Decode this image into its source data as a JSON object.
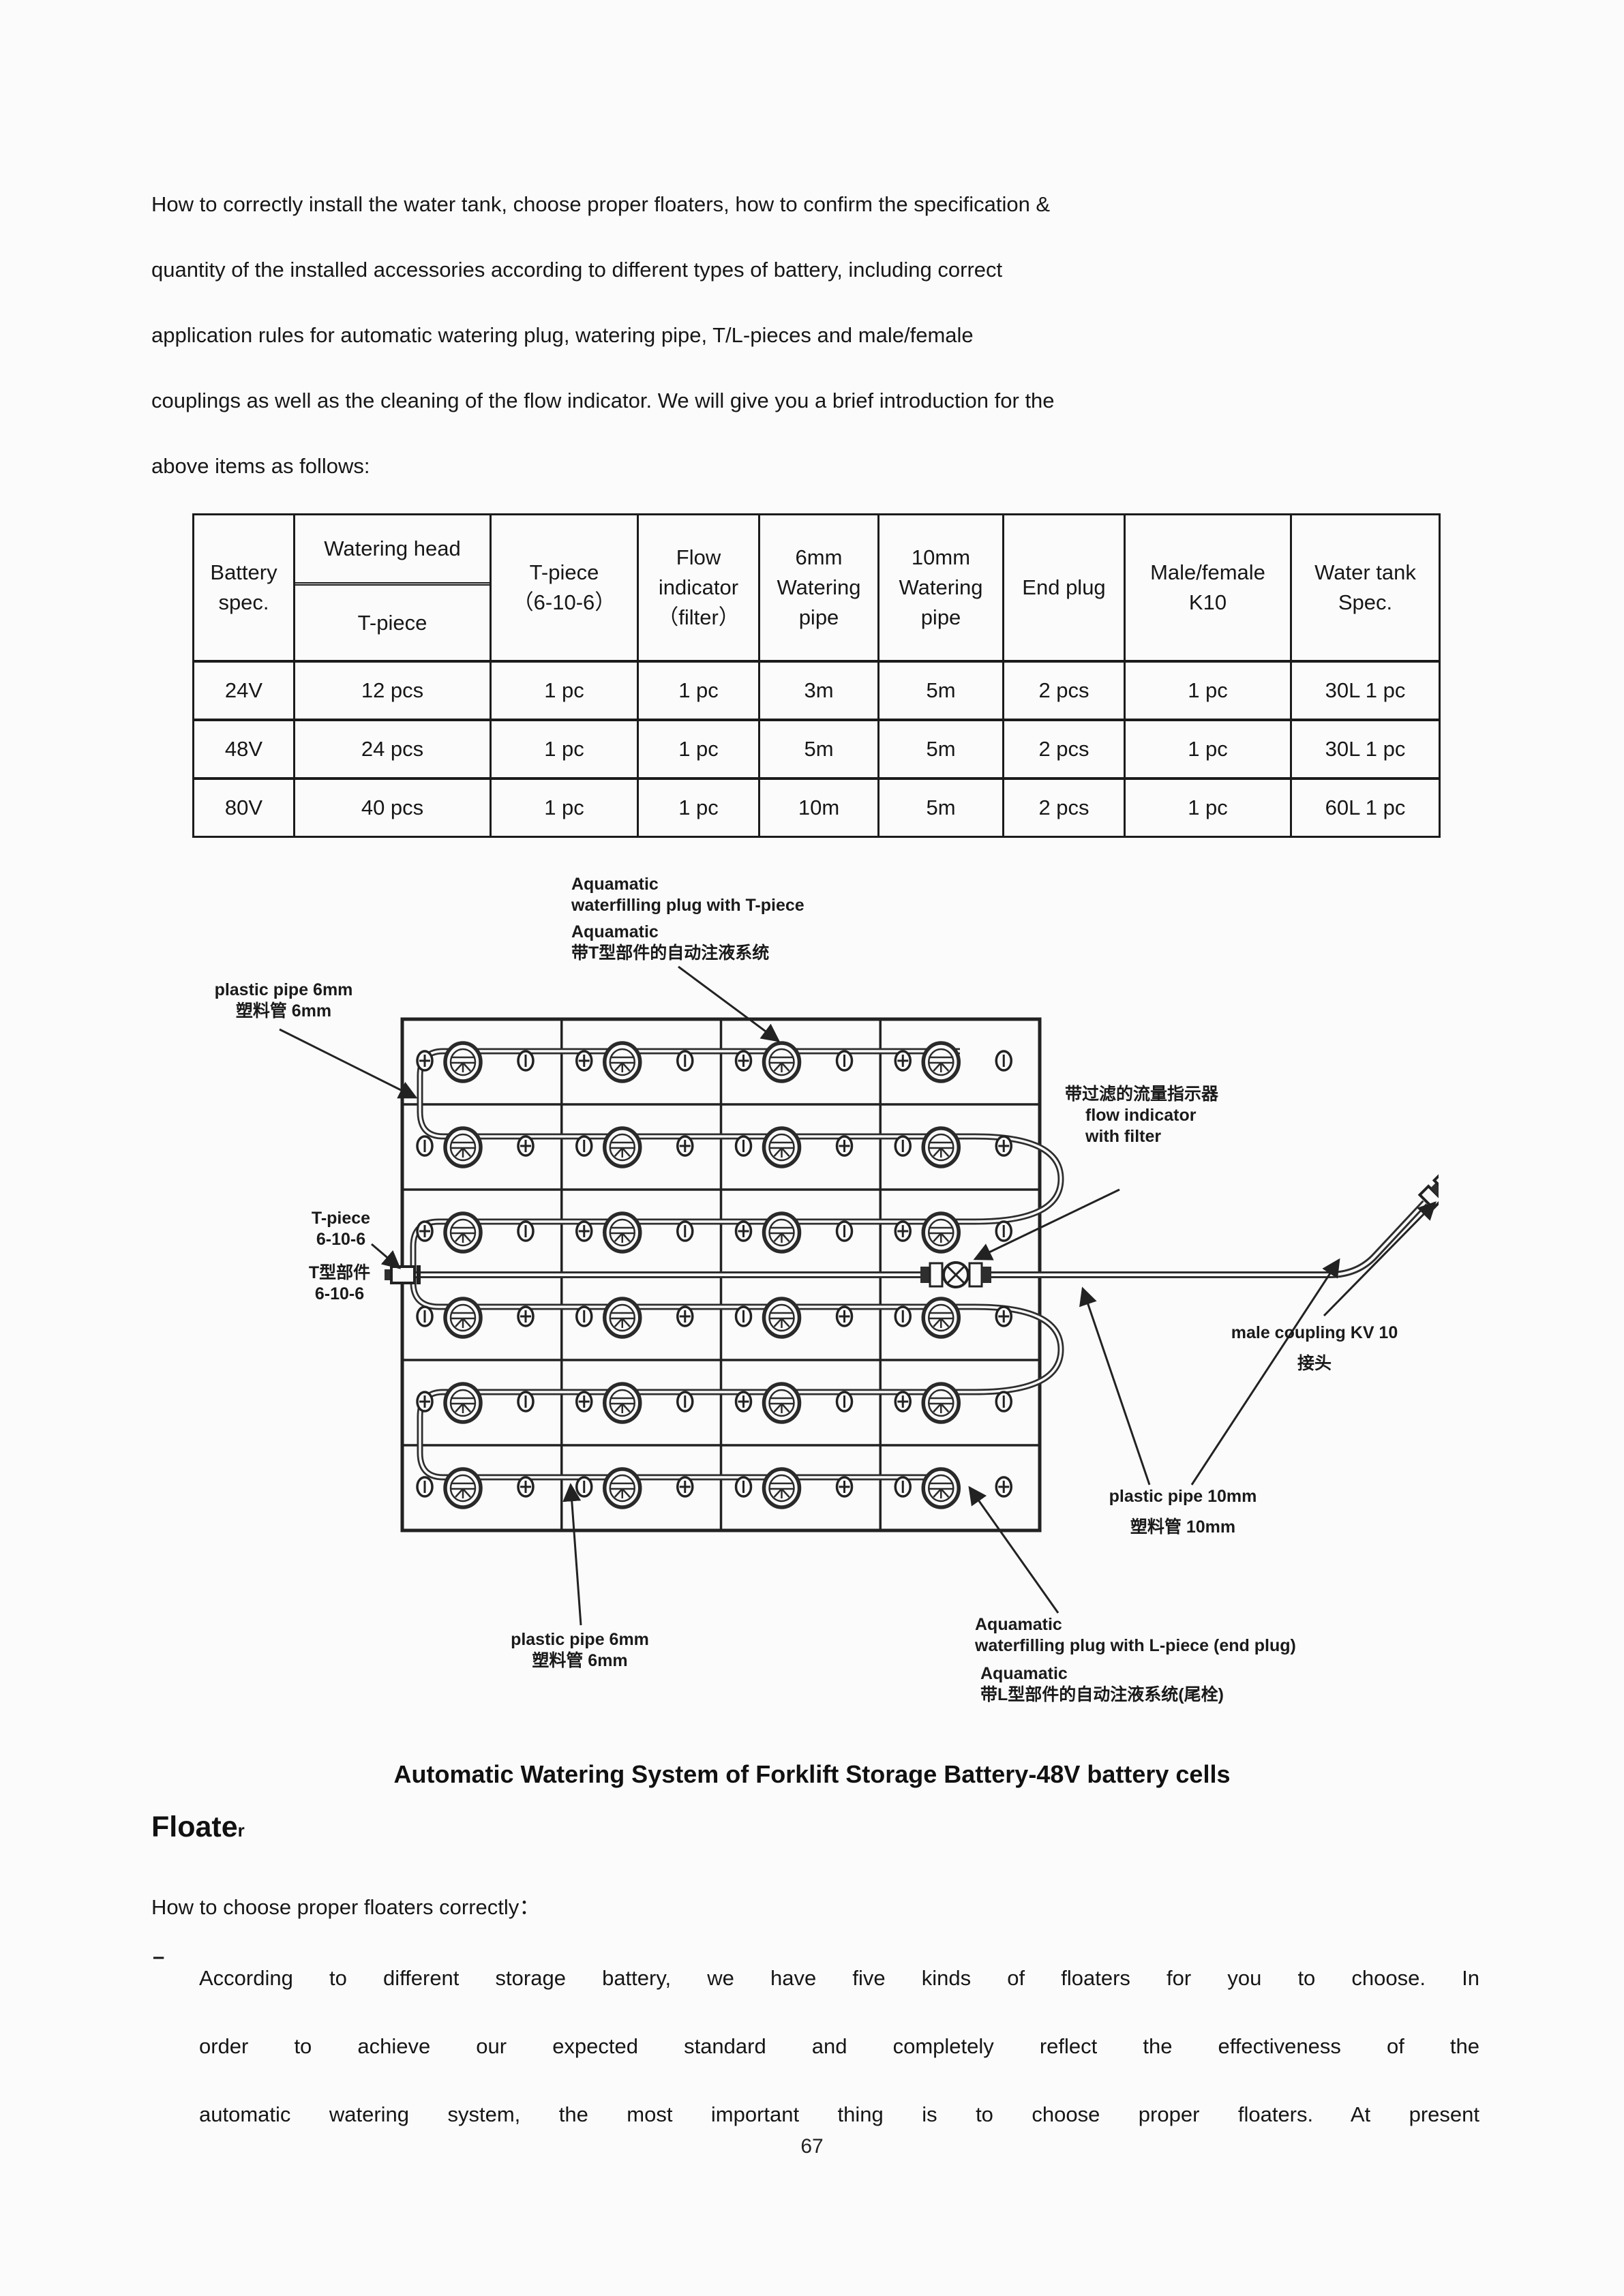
{
  "document": {
    "intro_lines": [
      "How to correctly install the water tank, choose proper floaters, how to confirm the specification &",
      "quantity of the installed accessories according to different types of battery, including correct",
      "application rules for automatic watering plug, watering pipe, T/L-pieces and male/female",
      "couplings as well as the cleaning of the flow indicator. We will give you a brief introduction for the",
      "above items as follows:"
    ],
    "caption": "Automatic Watering System of Forklift Storage Battery-48V battery cells",
    "floater_heading": {
      "main": "Floate",
      "tail": "r"
    },
    "subheading": "How to choose proper floaters correctly：",
    "bullet": {
      "marker": "–",
      "lines": [
        "According to different storage battery, we have five kinds of floaters for you to choose. In",
        "order to achieve our expected standard and completely reflect the effectiveness of the",
        "automatic watering system, the most important thing is to choose proper floaters. At present"
      ]
    },
    "page_number": "67"
  },
  "table": {
    "col_headers": {
      "battery_spec": [
        "Battery",
        "spec."
      ],
      "watering_head": {
        "top": "Watering head",
        "bottom": "T-piece"
      },
      "t_piece": [
        "T-piece",
        "（6-10-6）"
      ],
      "flow": [
        "Flow",
        "indicator",
        "（filter）"
      ],
      "pipe6": [
        "6mm",
        "Watering",
        "pipe"
      ],
      "pipe10": [
        "10mm",
        "Watering",
        "pipe"
      ],
      "end_plug": [
        "End plug"
      ],
      "male_female": [
        "Male/female",
        "K10"
      ],
      "water_tank": [
        "Water tank",
        "Spec."
      ]
    },
    "rows": [
      [
        "24V",
        "12 pcs",
        "1 pc",
        "1 pc",
        "3m",
        "5m",
        "2 pcs",
        "1 pc",
        "30L 1 pc"
      ],
      [
        "48V",
        "24 pcs",
        "1 pc",
        "1 pc",
        "5m",
        "5m",
        "2 pcs",
        "1 pc",
        "30L 1 pc"
      ],
      [
        "80V",
        "40 pcs",
        "1 pc",
        "1 pc",
        "10m",
        "5m",
        "2 pcs",
        "1 pc",
        "60L 1 pc"
      ]
    ]
  },
  "diagram": {
    "labels": {
      "plug_t_en_1": "Aquamatic",
      "plug_t_en_2": "waterfilling plug with T-piece",
      "plug_t_cn_1": "Aquamatic",
      "plug_t_cn_2": "带T型部件的自动注液系统",
      "pipe6_top_1": "plastic pipe 6mm",
      "pipe6_top_2": "塑料管 6mm",
      "t_piece_en_1": "T-piece",
      "t_piece_en_2": "6-10-6",
      "t_piece_cn_1": "T型部件",
      "t_piece_cn_2": "6-10-6",
      "flow_cn": "带过滤的流量指示器",
      "flow_en_1": "flow indicator",
      "flow_en_2": "with filter",
      "coupling_1": "male coupling KV 10",
      "coupling_2": "接头",
      "pipe10_1": "plastic pipe 10mm",
      "pipe10_2": "塑料管 10mm",
      "pipe6_bot_1": "plastic pipe 6mm",
      "pipe6_bot_2": "塑料管 6mm",
      "plug_l_en_1": "Aquamatic",
      "plug_l_en_2": "waterfilling plug with L-piece (end plug)",
      "plug_l_cn_1": "Aquamatic",
      "plug_l_cn_2": "带L型部件的自动注液系统(尾栓)"
    }
  }
}
